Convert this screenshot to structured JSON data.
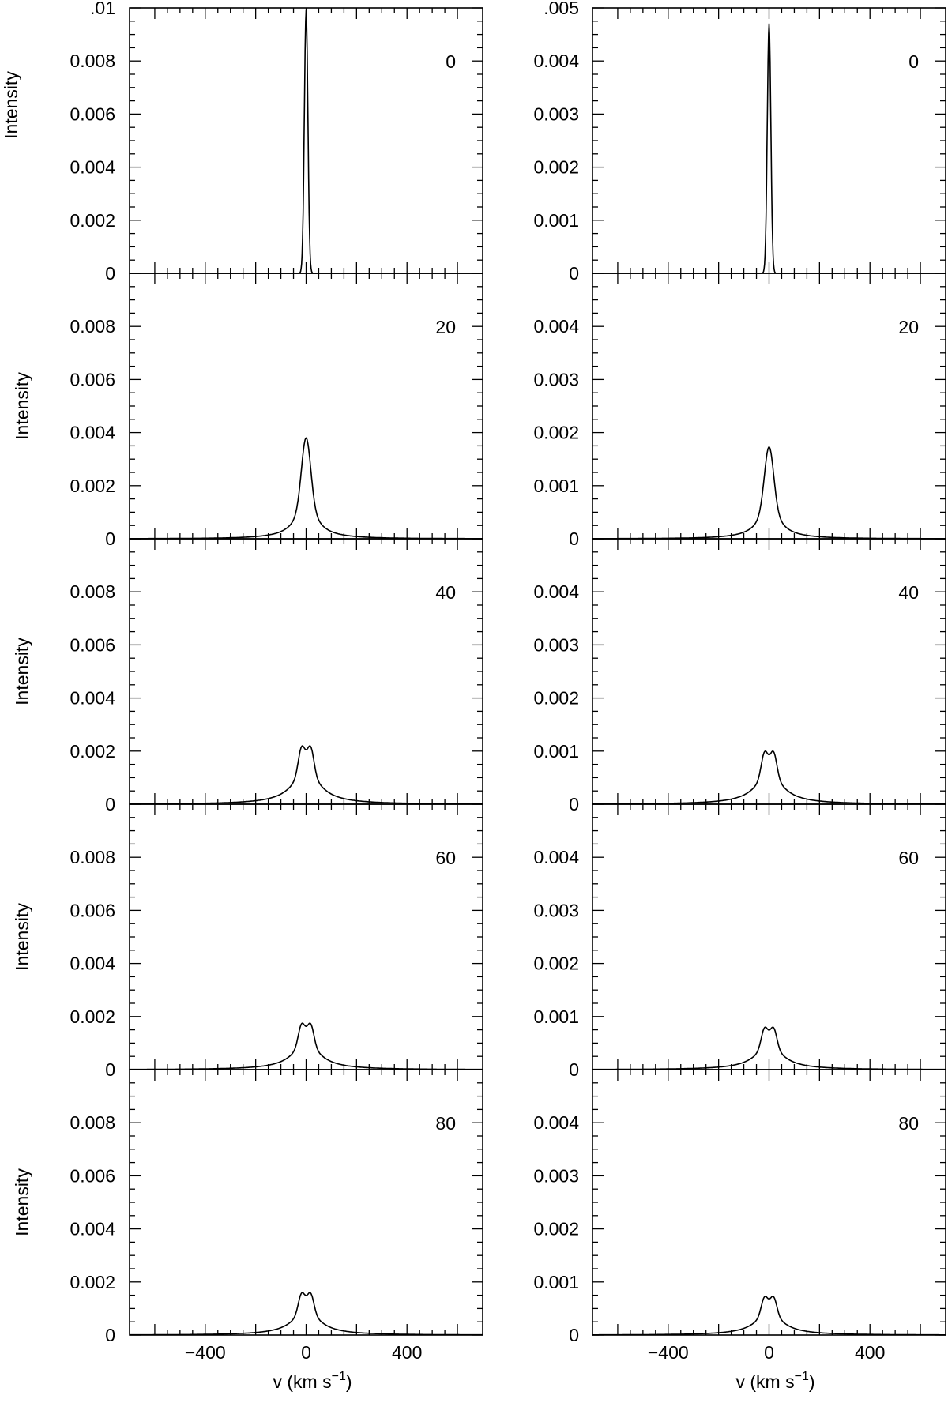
{
  "chart_data": [
    {
      "type": "line",
      "column": "left",
      "xlabel": "v (km s−1)",
      "ylabel": "Intensity",
      "xlim": [
        -700,
        700
      ],
      "x_ticks": [
        "−400",
        "0",
        "400"
      ],
      "x_tick_values": [
        -400,
        0,
        400
      ],
      "panels": [
        {
          "label": "0",
          "ylim": [
            0,
            0.01
          ],
          "y_ticks": [
            "0",
            "0.002",
            "0.004",
            "0.006",
            "0.008",
            ".01"
          ],
          "peak": 0.0099,
          "shape": "narrow"
        },
        {
          "label": "20",
          "ylim": [
            0,
            0.01
          ],
          "y_ticks": [
            "0",
            "0.002",
            "0.004",
            "0.006",
            "0.008"
          ],
          "peak": 0.0038,
          "shape": "single"
        },
        {
          "label": "40",
          "ylim": [
            0,
            0.01
          ],
          "y_ticks": [
            "0",
            "0.002",
            "0.004",
            "0.006",
            "0.008"
          ],
          "peak": 0.0022,
          "shape": "double"
        },
        {
          "label": "60",
          "ylim": [
            0,
            0.01
          ],
          "y_ticks": [
            "0",
            "0.002",
            "0.004",
            "0.006",
            "0.008"
          ],
          "peak": 0.00175,
          "shape": "double"
        },
        {
          "label": "80",
          "ylim": [
            0,
            0.01
          ],
          "y_ticks": [
            "0",
            "0.002",
            "0.004",
            "0.006",
            "0.008"
          ],
          "peak": 0.0016,
          "shape": "double"
        }
      ]
    },
    {
      "type": "line",
      "column": "right",
      "xlabel": "v (km s−1)",
      "ylabel": "",
      "xlim": [
        -700,
        700
      ],
      "x_ticks": [
        "−400",
        "0",
        "400"
      ],
      "x_tick_values": [
        -400,
        0,
        400
      ],
      "panels": [
        {
          "label": "0",
          "ylim": [
            0,
            0.005
          ],
          "y_ticks": [
            "0",
            "0.001",
            "0.002",
            "0.003",
            "0.004",
            ".005"
          ],
          "peak": 0.0047,
          "shape": "narrow"
        },
        {
          "label": "20",
          "ylim": [
            0,
            0.005
          ],
          "y_ticks": [
            "0",
            "0.001",
            "0.002",
            "0.003",
            "0.004"
          ],
          "peak": 0.00173,
          "shape": "single"
        },
        {
          "label": "40",
          "ylim": [
            0,
            0.005
          ],
          "y_ticks": [
            "0",
            "0.001",
            "0.002",
            "0.003",
            "0.004"
          ],
          "peak": 0.001,
          "shape": "double"
        },
        {
          "label": "60",
          "ylim": [
            0,
            0.005
          ],
          "y_ticks": [
            "0",
            "0.001",
            "0.002",
            "0.003",
            "0.004"
          ],
          "peak": 0.0008,
          "shape": "double"
        },
        {
          "label": "80",
          "ylim": [
            0,
            0.005
          ],
          "y_ticks": [
            "0",
            "0.001",
            "0.002",
            "0.003",
            "0.004"
          ],
          "peak": 0.00073,
          "shape": "double"
        }
      ]
    }
  ]
}
